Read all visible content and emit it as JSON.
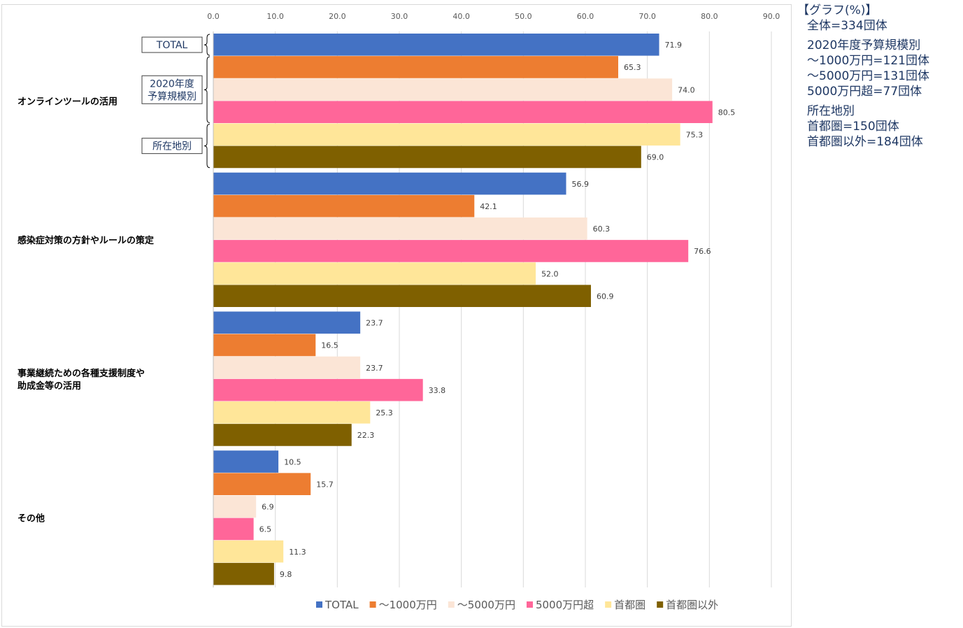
{
  "chart_data": {
    "type": "bar",
    "orientation": "horizontal",
    "categories": [
      "オンラインツールの活用",
      "感染症対策の方針やルールの策定",
      "事業継続ための各種支援制度や\n助成金等の活用",
      "その他"
    ],
    "series": [
      {
        "name": "TOTAL",
        "color": "#4472c4",
        "values": [
          71.9,
          56.9,
          23.7,
          10.5
        ]
      },
      {
        "name": "～1000万円",
        "color": "#ed7d31",
        "values": [
          65.3,
          42.1,
          16.5,
          15.7
        ]
      },
      {
        "name": "～5000万円",
        "color": "#fbe5d6",
        "values": [
          74.0,
          60.3,
          23.7,
          6.9
        ]
      },
      {
        "name": "5000万円超",
        "color": "#ff6699",
        "values": [
          80.5,
          76.6,
          33.8,
          6.5
        ]
      },
      {
        "name": "首都圏",
        "color": "#ffe699",
        "values": [
          75.3,
          52.0,
          25.3,
          11.3
        ]
      },
      {
        "name": "首都圏以外",
        "color": "#7f6000",
        "values": [
          69.0,
          60.9,
          22.3,
          9.8
        ]
      }
    ],
    "xlim": [
      0,
      90
    ],
    "ticks": [
      "0.0",
      "10.0",
      "20.0",
      "30.0",
      "40.0",
      "50.0",
      "60.0",
      "70.0",
      "80.0",
      "90.0"
    ],
    "grid": true,
    "legend_position": "bottom",
    "group_labels": [
      "TOTAL",
      "2020年度\n予算規模別",
      "所在地別"
    ]
  },
  "note": {
    "lines": [
      "【グラフ(%)】",
      "全体=334団体",
      "2020年度予算規模別",
      "～1000万円=121団体",
      "～5000万円=131団体",
      "5000万円超=77団体",
      "所在地別",
      "首都圏=150団体",
      "首都圏以外=184団体"
    ]
  }
}
